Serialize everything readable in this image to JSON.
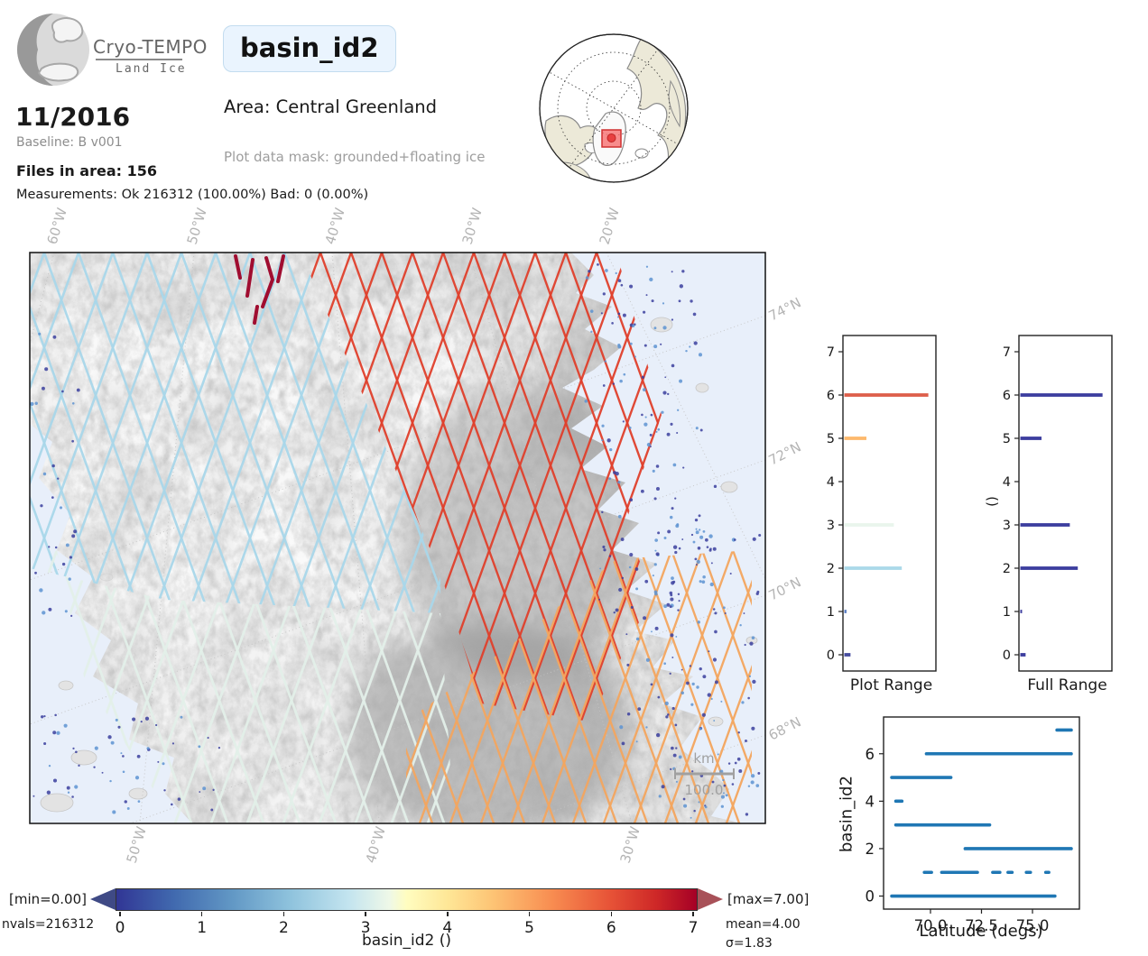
{
  "header": {
    "logo_title": "Cryo-TEMPO",
    "logo_subtitle": "Land Ice",
    "variable_badge": "basin_id2",
    "date": "11/2016",
    "baseline": "Baseline: B v001",
    "files_in_area": "Files in area: 156",
    "measurements": "Measurements: Ok 216312 (100.00%) Bad: 0 (0.00%)",
    "area": "Area: Central Greenland",
    "plot_mask": "Plot data mask: grounded+floating ice"
  },
  "map": {
    "top_lon_labels": [
      "60°W",
      "50°W",
      "40°W",
      "30°W",
      "20°W"
    ],
    "bottom_lon_labels": [
      "50°W",
      "40°W",
      "30°W"
    ],
    "lat_labels": [
      "74°N",
      "72°N",
      "70°N",
      "68°N"
    ],
    "scalebar_unit": "km",
    "scalebar_value": "100.0",
    "sea_color": "#e8effa",
    "land_color": "#ececec",
    "grid_color": "#c4c4c4",
    "basin_track_colors": {
      "basin2_light_blue": "#a9d7ea",
      "basin3_pale_mint": "#e3f0e9",
      "basin5_orange": "#f4a65f",
      "basin6_red": "#e0402c",
      "basin7_crimson": "#a00d30"
    },
    "coast_dot_colors": [
      "#3b3f9e",
      "#5d93d1"
    ]
  },
  "inset": {
    "land_color": "#ece9d8",
    "coast_color": "#8a8a8a",
    "box_color": "#e84040"
  },
  "chart_data": [
    {
      "id": "plot_range",
      "type": "bar",
      "orientation": "horizontal",
      "title": "Plot Range",
      "yticks": [
        0,
        1,
        2,
        3,
        4,
        5,
        6,
        7
      ],
      "ylim": [
        -0.4,
        7.4
      ],
      "xlim": [
        0,
        1
      ],
      "bars": [
        {
          "y": 0,
          "frac": 0.07,
          "color": "#474da0"
        },
        {
          "y": 1,
          "frac": 0.025,
          "color": "#5c7fc4"
        },
        {
          "y": 2,
          "frac": 0.65,
          "color": "#abd9e9"
        },
        {
          "y": 3,
          "frac": 0.56,
          "color": "#e9f5ec"
        },
        {
          "y": 5,
          "frac": 0.25,
          "color": "#fdb96d"
        },
        {
          "y": 6,
          "frac": 0.95,
          "color": "#dd5f4b"
        }
      ]
    },
    {
      "id": "full_range",
      "type": "bar",
      "orientation": "horizontal",
      "title": "Full Range",
      "ylabel": "()",
      "yticks": [
        0,
        1,
        2,
        3,
        4,
        5,
        6,
        7
      ],
      "ylim": [
        -0.4,
        7.4
      ],
      "xlim": [
        0,
        1
      ],
      "bar_color": "#3c3e9f",
      "bars": [
        {
          "y": 0,
          "frac": 0.06
        },
        {
          "y": 1,
          "frac": 0.02
        },
        {
          "y": 2,
          "frac": 0.65
        },
        {
          "y": 3,
          "frac": 0.56
        },
        {
          "y": 5,
          "frac": 0.24
        },
        {
          "y": 6,
          "frac": 0.93
        }
      ]
    },
    {
      "id": "latitude_scatter",
      "type": "scatter",
      "xlabel": "Latitude (degs)",
      "ylabel": "basin_id2",
      "xticks": [
        70.0,
        72.5,
        75.0
      ],
      "xtick_labels": [
        "70.0",
        "72.5",
        "75.0"
      ],
      "yticks": [
        0,
        2,
        4,
        6
      ],
      "xlim": [
        67.7,
        77.3
      ],
      "ylim": [
        -0.55,
        7.55
      ],
      "marker_color": "#1f77b4",
      "segments": [
        {
          "y": 0,
          "spans": [
            [
              68.1,
              76.1
            ]
          ]
        },
        {
          "y": 1,
          "spans": [
            [
              69.7,
              70.05
            ],
            [
              70.55,
              72.3
            ],
            [
              73.05,
              73.4
            ],
            [
              73.8,
              74.0
            ],
            [
              74.7,
              74.9
            ],
            [
              75.65,
              75.8
            ]
          ]
        },
        {
          "y": 2,
          "spans": [
            [
              71.7,
              76.9
            ]
          ]
        },
        {
          "y": 3,
          "spans": [
            [
              68.3,
              72.9
            ]
          ]
        },
        {
          "y": 4,
          "spans": [
            [
              68.3,
              68.6
            ]
          ]
        },
        {
          "y": 5,
          "spans": [
            [
              68.1,
              71.0
            ]
          ]
        },
        {
          "y": 6,
          "spans": [
            [
              69.8,
              76.9
            ]
          ]
        },
        {
          "y": 7,
          "spans": [
            [
              76.2,
              76.9
            ]
          ]
        }
      ]
    }
  ],
  "colorbar": {
    "label": "basin_id2 ()",
    "ticks": [
      "0",
      "1",
      "2",
      "3",
      "4",
      "5",
      "6",
      "7"
    ],
    "min_label": "[min=0.00]",
    "max_label": "[max=7.00]",
    "nvals_label": "nvals=216312",
    "mean_label": "mean=4.00",
    "sigma_label": "σ=1.83",
    "under_color": "#3f4a85",
    "over_color": "#a85158",
    "stops": [
      {
        "p": 0.0,
        "c": "#313695"
      },
      {
        "p": 0.1,
        "c": "#416aaf"
      },
      {
        "p": 0.2,
        "c": "#6298c5"
      },
      {
        "p": 0.3,
        "c": "#8fc3dd"
      },
      {
        "p": 0.4,
        "c": "#c3e4ef"
      },
      {
        "p": 0.47,
        "c": "#eef8e8"
      },
      {
        "p": 0.5,
        "c": "#fffdc0"
      },
      {
        "p": 0.57,
        "c": "#fee797"
      },
      {
        "p": 0.65,
        "c": "#fdc374"
      },
      {
        "p": 0.75,
        "c": "#f88d51"
      },
      {
        "p": 0.85,
        "c": "#e75337"
      },
      {
        "p": 0.93,
        "c": "#ce2827"
      },
      {
        "p": 1.0,
        "c": "#a50026"
      }
    ]
  }
}
